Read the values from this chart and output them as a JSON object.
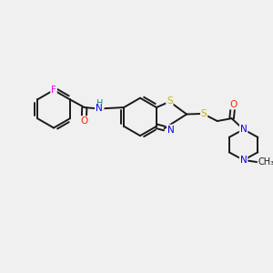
{
  "bg_color": "#f0f0f0",
  "bond_color": "#1a1a1a",
  "atom_colors": {
    "F": "#ee00ee",
    "O": "#ff2200",
    "N": "#0000ee",
    "S": "#bbbb00",
    "H": "#008888",
    "C": "#1a1a1a"
  },
  "figsize": [
    3.0,
    3.0
  ],
  "dpi": 100,
  "lw": 1.4,
  "fs": 7.5
}
